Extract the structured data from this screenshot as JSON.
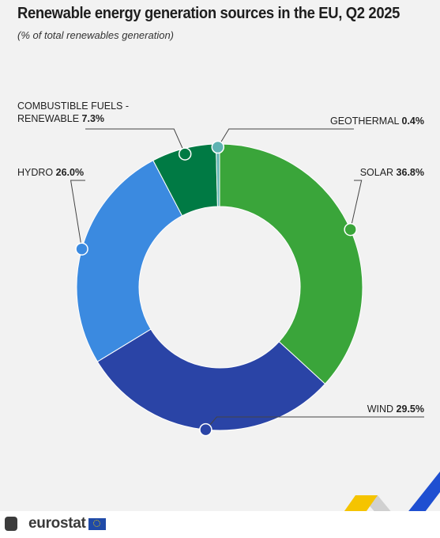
{
  "title": "Renewable energy generation sources in the EU, Q2 2025",
  "subtitle": "(% of total renewables generation)",
  "brand": "eurostat",
  "chart_data": {
    "type": "pie",
    "variant": "donut",
    "title": "Renewable energy generation sources in the EU, Q2 2025",
    "subtitle": "(% of total renewables generation)",
    "unit": "%",
    "slices": [
      {
        "name": "SOLAR",
        "value": 36.8,
        "value_label": "36.8%",
        "color": "#3aa53a"
      },
      {
        "name": "WIND",
        "value": 29.5,
        "value_label": "29.5%",
        "color": "#2a44a6"
      },
      {
        "name": "HYDRO",
        "value": 26.0,
        "value_label": "26.0%",
        "color": "#3b8ae0"
      },
      {
        "name": "COMBUSTIBLE FUELS - RENEWABLE",
        "label_lines": [
          "COMBUSTIBLE FUELS -",
          "RENEWABLE"
        ],
        "value": 7.3,
        "value_label": "7.3%",
        "color": "#007a44"
      },
      {
        "name": "GEOTHERMAL",
        "value": 0.4,
        "value_label": "0.4%",
        "color": "#5fb3b3"
      }
    ]
  },
  "colors": {
    "background": "#f2f2f2",
    "text": "#1e1e1e",
    "deco_yellow": "#f5c400",
    "deco_blue": "#1f4fd1"
  }
}
